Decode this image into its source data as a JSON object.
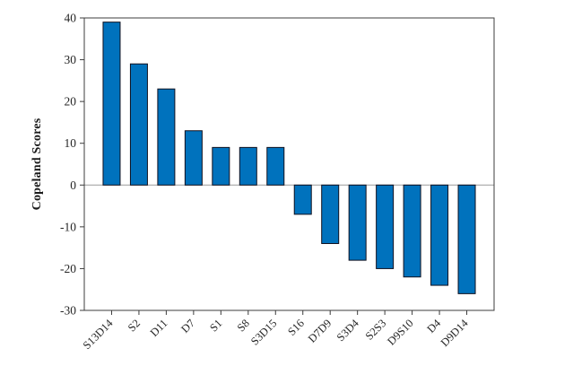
{
  "chart_data": {
    "type": "bar",
    "title": "",
    "xlabel": "",
    "ylabel": "Copeland Scores",
    "categories": [
      "S13D14",
      "S2",
      "D11",
      "D7",
      "S1",
      "S8",
      "S3D15",
      "S16",
      "D7D9",
      "S3D4",
      "S2S3",
      "D9S10",
      "D4",
      "D9D14"
    ],
    "values": [
      39,
      29,
      23,
      13,
      9,
      9,
      9,
      -7,
      -14,
      -18,
      -20,
      -22,
      -24,
      -26
    ],
    "ylim": [
      -30,
      40
    ],
    "yticks": [
      -30,
      -20,
      -10,
      0,
      10,
      20,
      30,
      40
    ],
    "grid": false,
    "legend": "none",
    "box": true,
    "tick_label_rotation": 45,
    "bar_color": "#0072BD",
    "bar_edge_color": "#10101e",
    "axis_color": "#3c3c3c",
    "tick_text_color": "#262626",
    "zero_line_color": "#9b9b9b"
  }
}
